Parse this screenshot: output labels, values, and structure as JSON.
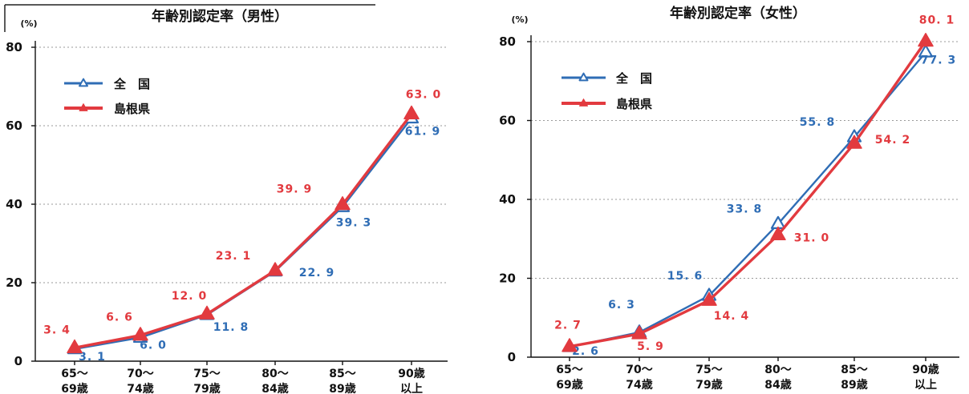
{
  "colors": {
    "national": "#2f6db5",
    "shimane": "#e23a3f"
  },
  "chart_data": [
    {
      "type": "line",
      "title": "年齢別認定率（男性）",
      "y_unit": "(%)",
      "ylim": [
        0,
        80
      ],
      "yticks": [
        "0",
        "20",
        "40",
        "60",
        "80"
      ],
      "categories": [
        [
          "65～",
          "69歳"
        ],
        [
          "70～",
          "74歳"
        ],
        [
          "75～",
          "79歳"
        ],
        [
          "80～",
          "84歳"
        ],
        [
          "85～",
          "89歳"
        ],
        [
          "90歳",
          "以上"
        ]
      ],
      "grid": true,
      "legend_position": "top-left",
      "series": [
        {
          "name": "全　国",
          "key": "national",
          "values": [
            3.1,
            6.0,
            11.8,
            22.9,
            39.3,
            61.9
          ],
          "labels": [
            "3. 1",
            "6. 0",
            "11. 8",
            "22. 9",
            "39. 3",
            "61. 9"
          ]
        },
        {
          "name": "島根県",
          "key": "shimane",
          "values": [
            3.4,
            6.6,
            12.0,
            23.1,
            39.9,
            63.0
          ],
          "labels": [
            "3. 4",
            "6. 6",
            "12. 0",
            "23. 1",
            "39. 9",
            "63. 0"
          ]
        }
      ]
    },
    {
      "type": "line",
      "title": "年齢別認定率（女性）",
      "y_unit": "(%)",
      "ylim": [
        0,
        80
      ],
      "yticks": [
        "0",
        "20",
        "40",
        "60",
        "80"
      ],
      "categories": [
        [
          "65～",
          "69歳"
        ],
        [
          "70～",
          "74歳"
        ],
        [
          "75～",
          "79歳"
        ],
        [
          "80～",
          "84歳"
        ],
        [
          "85～",
          "89歳"
        ],
        [
          "90歳",
          "以上"
        ]
      ],
      "grid": true,
      "legend_position": "top-left",
      "series": [
        {
          "name": "全　国",
          "key": "national",
          "values": [
            2.6,
            6.3,
            15.6,
            33.8,
            55.8,
            77.3
          ],
          "labels": [
            "2. 6",
            "6. 3",
            "15. 6",
            "33. 8",
            "55. 8",
            "77. 3"
          ]
        },
        {
          "name": "島根県",
          "key": "shimane",
          "values": [
            2.7,
            5.9,
            14.4,
            31.0,
            54.2,
            80.1
          ],
          "labels": [
            "2. 7",
            "5. 9",
            "14. 4",
            "31. 0",
            "54. 2",
            "80. 1"
          ]
        }
      ]
    }
  ]
}
